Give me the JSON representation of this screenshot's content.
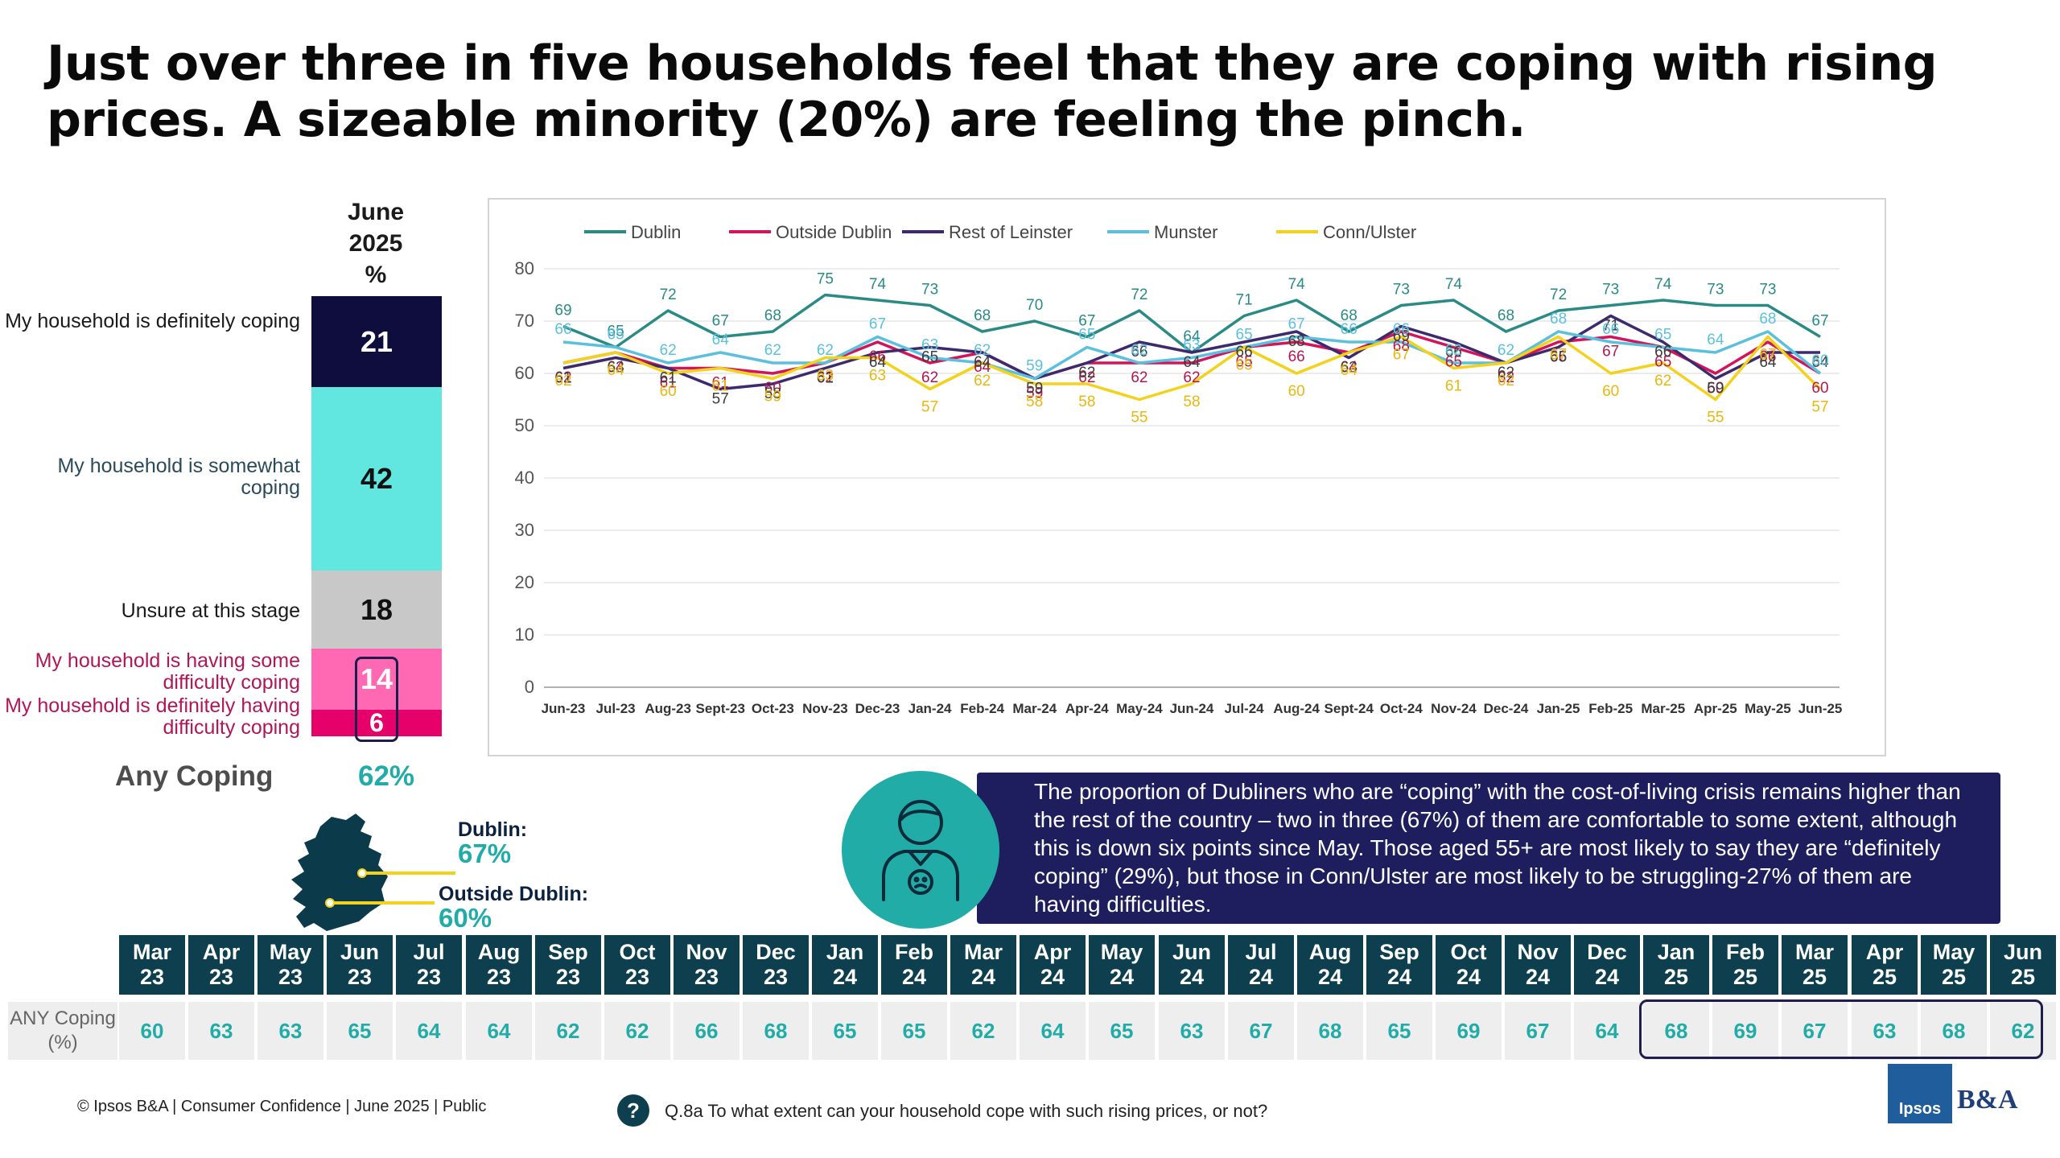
{
  "title": "Just over three in five households feel that they are coping with rising prices. A sizeable minority (20%) are feeling the pinch.",
  "stacked_bar": {
    "header": [
      "June",
      "2025",
      "%"
    ],
    "segments": [
      {
        "label": "My household is definitely coping",
        "value": 21,
        "color": "#0f0c3e",
        "text_color": "#ffffff",
        "label_color": "#1a1a1a"
      },
      {
        "label": "My household is somewhat coping",
        "value": 42,
        "color": "#62e6e0",
        "text_color": "#111111",
        "label_color": "#2b4a5a"
      },
      {
        "label": "Unsure at this stage",
        "value": 18,
        "color": "#c8c8c8",
        "text_color": "#111111",
        "label_color": "#1a1a1a"
      },
      {
        "label": "My household is having some difficulty coping",
        "value": 14,
        "color": "#ff69b4",
        "text_color": "#ffffff",
        "label_color": "#b0175a"
      },
      {
        "label": "My household is definitely having difficulty coping",
        "value": 6,
        "color": "#e6006a",
        "text_color": "#ffffff",
        "label_color": "#b0175a"
      }
    ],
    "any_label": "Any Coping",
    "any_value": "62%"
  },
  "chart_data": {
    "type": "line",
    "categories": [
      "Jun-23",
      "Jul-23",
      "Aug-23",
      "Sept-23",
      "Oct-23",
      "Nov-23",
      "Dec-23",
      "Jan-24",
      "Feb-24",
      "Mar-24",
      "Apr-24",
      "May-24",
      "Jun-24",
      "Jul-24",
      "Aug-24",
      "Sept-24",
      "Oct-24",
      "Nov-24",
      "Dec-24",
      "Jan-25",
      "Feb-25",
      "Mar-25",
      "Apr-25",
      "May-25",
      "Jun-25"
    ],
    "ylim": [
      0,
      80
    ],
    "yticks": [
      0,
      10,
      20,
      30,
      40,
      50,
      60,
      70,
      80
    ],
    "grid": true,
    "legend_position": "top-left",
    "series": [
      {
        "name": "Dublin",
        "color": "#2a8a86",
        "label_color": "#2a8a86",
        "values": [
          69,
          65,
          72,
          67,
          68,
          75,
          74,
          73,
          68,
          70,
          67,
          72,
          64,
          71,
          74,
          68,
          73,
          74,
          68,
          72,
          73,
          74,
          73,
          73,
          67
        ]
      },
      {
        "name": "Outside Dublin",
        "color": "#d4145a",
        "label_color": "#b5174f",
        "values": [
          62,
          64,
          61,
          61,
          60,
          62,
          66,
          62,
          64,
          59,
          62,
          62,
          62,
          65,
          66,
          64,
          68,
          65,
          62,
          66,
          67,
          65,
          60,
          66,
          60
        ]
      },
      {
        "name": "Rest of Leinster",
        "color": "#3d2a6e",
        "label_color": "#3c3c3c",
        "values": [
          61,
          63,
          61,
          57,
          58,
          61,
          64,
          65,
          64,
          59,
          62,
          66,
          64,
          66,
          68,
          63,
          69,
          66,
          62,
          65,
          71,
          66,
          59,
          64,
          64
        ]
      },
      {
        "name": "Munster",
        "color": "#5bc0de",
        "label_color": "#5bc0de",
        "values": [
          66,
          65,
          62,
          64,
          62,
          62,
          67,
          63,
          62,
          59,
          65,
          62,
          63,
          65,
          67,
          66,
          66,
          62,
          62,
          68,
          66,
          65,
          64,
          68,
          60
        ]
      },
      {
        "name": "Conn/Ulster",
        "color": "#f2d21b",
        "label_color": "#e8b80f",
        "values": [
          62,
          64,
          60,
          61,
          59,
          63,
          63,
          57,
          62,
          58,
          58,
          55,
          58,
          65,
          60,
          64,
          67,
          61,
          62,
          67,
          60,
          62,
          55,
          67,
          57
        ]
      }
    ]
  },
  "map": {
    "dublin_label": "Dublin:",
    "dublin_value": "67%",
    "outside_label": "Outside Dublin:",
    "outside_value": "60%"
  },
  "info": {
    "text": "The proportion of Dubliners who are “coping” with the cost-of-living crisis remains higher than the rest of the country – two in three (67%) of them are comfortable to some extent, although this is down six points since May. Those aged 55+ are most likely to say they are “definitely coping” (29%), but those in Conn/Ulster are most likely to be struggling-27% of them are having difficulties."
  },
  "history": {
    "row_label": "ANY Coping (%)",
    "months": [
      {
        "m": "Mar",
        "y": "23",
        "v": "60"
      },
      {
        "m": "Apr",
        "y": "23",
        "v": "63"
      },
      {
        "m": "May",
        "y": "23",
        "v": "63"
      },
      {
        "m": "Jun",
        "y": "23",
        "v": "65"
      },
      {
        "m": "Jul",
        "y": "23",
        "v": "64"
      },
      {
        "m": "Aug",
        "y": "23",
        "v": "64"
      },
      {
        "m": "Sep",
        "y": "23",
        "v": "62"
      },
      {
        "m": "Oct",
        "y": "23",
        "v": "62"
      },
      {
        "m": "Nov",
        "y": "23",
        "v": "66"
      },
      {
        "m": "Dec",
        "y": "23",
        "v": "68"
      },
      {
        "m": "Jan",
        "y": "24",
        "v": "65"
      },
      {
        "m": "Feb",
        "y": "24",
        "v": "65"
      },
      {
        "m": "Mar",
        "y": "24",
        "v": "62"
      },
      {
        "m": "Apr",
        "y": "24",
        "v": "64"
      },
      {
        "m": "May",
        "y": "24",
        "v": "65"
      },
      {
        "m": "Jun",
        "y": "24",
        "v": "63"
      },
      {
        "m": "Jul",
        "y": "24",
        "v": "67"
      },
      {
        "m": "Aug",
        "y": "24",
        "v": "68"
      },
      {
        "m": "Sep",
        "y": "24",
        "v": "65"
      },
      {
        "m": "Oct",
        "y": "24",
        "v": "69"
      },
      {
        "m": "Nov",
        "y": "24",
        "v": "67"
      },
      {
        "m": "Dec",
        "y": "24",
        "v": "64"
      },
      {
        "m": "Jan",
        "y": "25",
        "v": "68"
      },
      {
        "m": "Feb",
        "y": "25",
        "v": "69"
      },
      {
        "m": "Mar",
        "y": "25",
        "v": "67"
      },
      {
        "m": "Apr",
        "y": "25",
        "v": "63"
      },
      {
        "m": "May",
        "y": "25",
        "v": "68"
      },
      {
        "m": "Jun",
        "y": "25",
        "v": "62"
      }
    ]
  },
  "footer": {
    "copyright": "© Ipsos B&A | Consumer Confidence | June 2025 |  Public",
    "question_icon": "?",
    "question": "Q.8a To what extent can your household cope with such rising prices, or not?"
  },
  "logo": {
    "ipsos": "Ipsos",
    "ba": "B&A",
    "ipsos_color": "#1f5d9c"
  }
}
